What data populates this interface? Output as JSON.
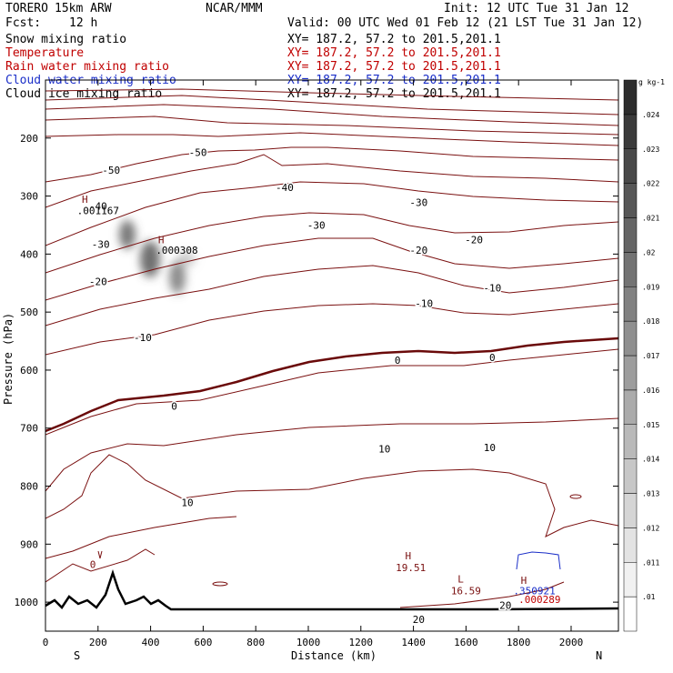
{
  "header": {
    "model": "TORERO",
    "model_res": "15km ARW",
    "org": "NCAR/MMM",
    "init": "Init: 12 UTC Tue 31 Jan 12",
    "fcst_label": "Fcst:",
    "fcst_value": "12 h",
    "valid": "Valid: 00 UTC Wed 01 Feb 12 (21 LST Tue 31 Jan 12)"
  },
  "fields": [
    {
      "name": "Snow mixing ratio",
      "xy": "XY= 187.2, 57.2 to 201.5,201.1",
      "color": "#000000"
    },
    {
      "name": "Temperature",
      "xy": "XY= 187.2, 57.2 to 201.5,201.1",
      "color": "#c00000"
    },
    {
      "name": "Rain water mixing ratio",
      "xy": "XY= 187.2, 57.2 to 201.5,201.1",
      "color": "#c00000"
    },
    {
      "name": "Cloud water mixing ratio",
      "xy": "XY= 187.2, 57.2 to 201.5,201.1",
      "color": "#1a2ec8"
    },
    {
      "name": "Cloud ice mixing ratio",
      "xy": "XY= 187.2, 57.2 to 201.5,201.1",
      "color": "#000000"
    }
  ],
  "chart_data": {
    "type": "cross-section contour",
    "xlabel": "Distance (km)",
    "ylabel": "Pressure (hPa)",
    "xlim": [
      0,
      2180
    ],
    "ylim": [
      1050,
      100
    ],
    "xticks": [
      0,
      200,
      400,
      600,
      800,
      1000,
      1200,
      1400,
      1600,
      1800,
      2000
    ],
    "yticks": [
      200,
      300,
      400,
      500,
      600,
      700,
      800,
      900,
      1000
    ],
    "x_end_labels": {
      "left": "S",
      "right": "N"
    },
    "colorbar": {
      "unit": "g kg-1",
      "ticks": [
        ".01",
        ".011",
        ".012",
        ".013",
        ".014",
        ".015",
        ".016",
        ".017",
        ".018",
        ".019",
        ".02",
        ".021",
        ".022",
        ".023",
        ".024"
      ]
    },
    "temperature_labels": [
      {
        "text": "-50",
        "x": 580,
        "p": 225
      },
      {
        "text": "-50",
        "x": 250,
        "p": 255
      },
      {
        "text": "-40",
        "x": 910,
        "p": 285
      },
      {
        "text": "-40",
        "x": 200,
        "p": 317
      },
      {
        "text": "-30",
        "x": 1420,
        "p": 311
      },
      {
        "text": "-30",
        "x": 1030,
        "p": 350
      },
      {
        "text": "-30",
        "x": 210,
        "p": 383
      },
      {
        "text": "-20",
        "x": 1630,
        "p": 375
      },
      {
        "text": "-20",
        "x": 1420,
        "p": 393
      },
      {
        "text": "-20",
        "x": 200,
        "p": 447
      },
      {
        "text": "-10",
        "x": 1700,
        "p": 458
      },
      {
        "text": "-10",
        "x": 1440,
        "p": 485
      },
      {
        "text": "-10",
        "x": 370,
        "p": 544
      },
      {
        "text": "0",
        "x": 1700,
        "p": 578
      },
      {
        "text": "0",
        "x": 1340,
        "p": 583
      },
      {
        "text": "0",
        "x": 490,
        "p": 662
      },
      {
        "text": "10",
        "x": 1690,
        "p": 733
      },
      {
        "text": "10",
        "x": 1290,
        "p": 736
      },
      {
        "text": "10",
        "x": 540,
        "p": 828
      },
      {
        "text": "20",
        "x": 1750,
        "p": 1005
      },
      {
        "text": "20",
        "x": 1420,
        "p": 1030
      }
    ],
    "annotations": [
      {
        "text": "H",
        "x": 150,
        "p": 305
      },
      {
        "text": ".001167",
        "x": 200,
        "p": 325
      },
      {
        "text": "H",
        "x": 440,
        "p": 375
      },
      {
        "text": ".000308",
        "x": 500,
        "p": 393
      },
      {
        "text": "H",
        "x": 1380,
        "p": 920
      },
      {
        "text": "19.51",
        "x": 1390,
        "p": 940
      },
      {
        "text": "L",
        "x": 1580,
        "p": 960
      },
      {
        "text": "16.59",
        "x": 1600,
        "p": 980
      },
      {
        "text": "H",
        "x": 1820,
        "p": 962
      },
      {
        "text": ".350921",
        "x": 1860,
        "p": 980
      },
      {
        "text": ".000289",
        "x": 1880,
        "p": 995
      },
      {
        "text": "0",
        "x": 180,
        "p": 935
      }
    ]
  }
}
